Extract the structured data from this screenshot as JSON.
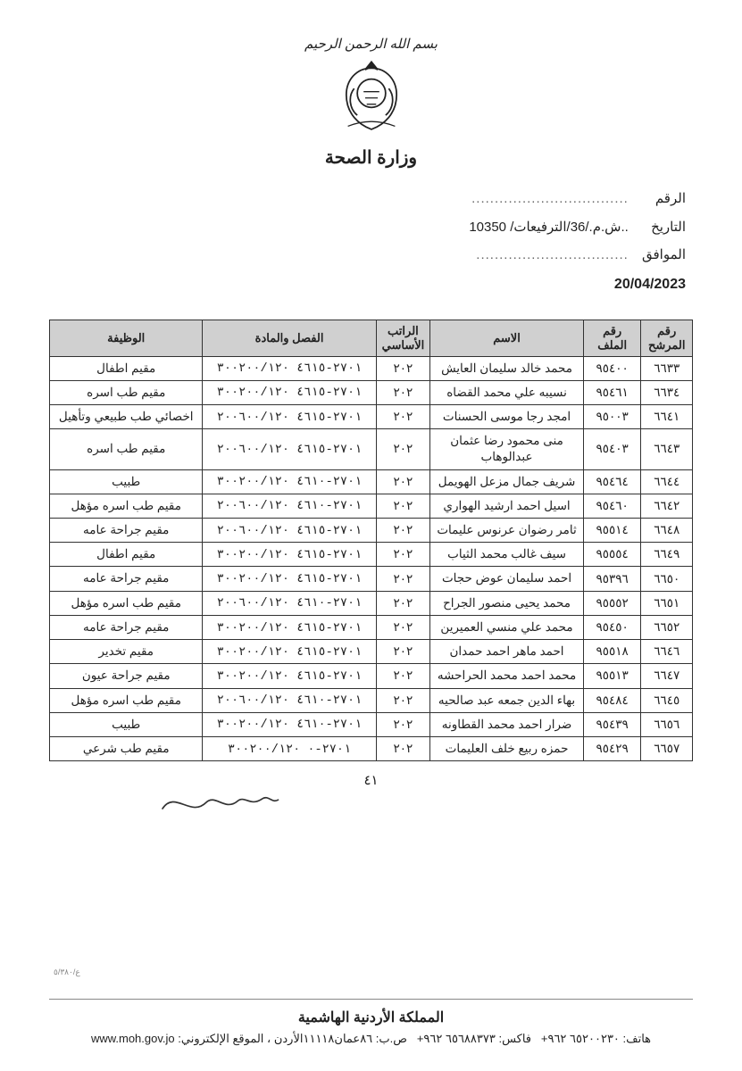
{
  "header": {
    "bismillah": "بسم الله الرحمن الرحيم",
    "ministry": "وزارة الصحة"
  },
  "meta": {
    "number_label": "الرقم",
    "number_value": "..................................",
    "date_label": "التاريخ",
    "date_value": "..ش.م./36/الترفيعات/ 10350",
    "approved_label": "الموافق",
    "approved_value": ".................................",
    "date_en": "20/04/2023"
  },
  "table": {
    "columns": [
      "رقم المرشح",
      "رقم الملف",
      "الاسم",
      "الراتب الأساسي",
      "الفصل والمادة",
      "الوظيفة"
    ],
    "rows": [
      [
        "٦٦٣٣",
        "٩٥٤٠٠",
        "محمد خالد سليمان العايش",
        "٢٠٢",
        "٢٧٠١-٤٦١٥ ٣٠٠٢٠٠/١٢٠",
        "مقيم اطفال"
      ],
      [
        "٦٦٣٤",
        "٩٥٤٦١",
        "نسيبه علي محمد القضاه",
        "٢٠٢",
        "٢٧٠١-٤٦١٥ ٣٠٠٢٠٠/١٢٠",
        "مقيم طب اسره"
      ],
      [
        "٦٦٤١",
        "٩٥٠٠٣",
        "امجد رجا موسى الحسنات",
        "٢٠٢",
        "٢٧٠١-٤٦١٥ ٢٠٠٦٠٠/١٢٠",
        "اخصائي طب طبيعي وتأهيل"
      ],
      [
        "٦٦٤٣",
        "٩٥٤٠٣",
        "منى محمود رضا عثمان عبدالوهاب",
        "٢٠٢",
        "٢٧٠١-٤٦١٥ ٢٠٠٦٠٠/١٢٠",
        "مقيم طب اسره"
      ],
      [
        "٦٦٤٤",
        "٩٥٤٦٤",
        "شريف جمال مزعل الهويمل",
        "٢٠٢",
        "٢٧٠١-٤٦١٠ ٣٠٠٢٠٠/١٢٠",
        "طبيب"
      ],
      [
        "٦٦٤٢",
        "٩٥٤٦٠",
        "اسيل احمد ارشيد الهواري",
        "٢٠٢",
        "٢٧٠١-٤٦١٠ ٢٠٠٦٠٠/١٢٠",
        "مقيم طب اسره مؤهل"
      ],
      [
        "٦٦٤٨",
        "٩٥٥١٤",
        "ثامر رضوان عرنوس عليمات",
        "٢٠٢",
        "٢٧٠١-٤٦١٥ ٢٠٠٦٠٠/١٢٠",
        "مقيم جراحة عامه"
      ],
      [
        "٦٦٤٩",
        "٩٥٥٥٤",
        "سيف غالب محمد الثياب",
        "٢٠٢",
        "٢٧٠١-٤٦١٥ ٣٠٠٢٠٠/١٢٠",
        "مقيم اطفال"
      ],
      [
        "٦٦٥٠",
        "٩٥٣٩٦",
        "احمد سليمان عوض حجات",
        "٢٠٢",
        "٢٧٠١-٤٦١٥ ٣٠٠٢٠٠/١٢٠",
        "مقيم جراحة عامه"
      ],
      [
        "٦٦٥١",
        "٩٥٥٥٢",
        "محمد يحيى منصور الجراح",
        "٢٠٢",
        "٢٧٠١-٤٦١٠ ٢٠٠٦٠٠/١٢٠",
        "مقيم طب اسره مؤهل"
      ],
      [
        "٦٦٥٢",
        "٩٥٤٥٠",
        "محمد علي منسي العميرين",
        "٢٠٢",
        "٢٧٠١-٤٦١٥ ٣٠٠٢٠٠/١٢٠",
        "مقيم جراحة عامه"
      ],
      [
        "٦٦٤٦",
        "٩٥٥١٨",
        "احمد ماهر احمد حمدان",
        "٢٠٢",
        "٢٧٠١-٤٦١٥ ٣٠٠٢٠٠/١٢٠",
        "مقيم تخدير"
      ],
      [
        "٦٦٤٧",
        "٩٥٥١٣",
        "محمد احمد محمد الحراحشه",
        "٢٠٢",
        "٢٧٠١-٤٦١٥ ٣٠٠٢٠٠/١٢٠",
        "مقيم جراحة عيون"
      ],
      [
        "٦٦٤٥",
        "٩٥٤٨٤",
        "بهاء الدين جمعه عبد صالحيه",
        "٢٠٢",
        "٢٧٠١-٤٦١٠ ٢٠٠٦٠٠/١٢٠",
        "مقيم طب اسره مؤهل"
      ],
      [
        "٦٦٥٦",
        "٩٥٤٣٩",
        "ضرار احمد محمد القطاونه",
        "٢٠٢",
        "٢٧٠١-٤٦١٠ ٣٠٠٢٠٠/١٢٠",
        "طبيب"
      ],
      [
        "٦٦٥٧",
        "٩٥٤٢٩",
        "حمزه ربيع خلف العليمات",
        "٢٠٢",
        "٢٧٠١-٠ ٣٠٠٢٠٠/١٢٠",
        "مقيم طب شرعي"
      ]
    ]
  },
  "page_number": "٤١",
  "footer": {
    "kingdom": "المملكة الأردنية الهاشمية",
    "contact_phone_label": "هاتف:",
    "contact_phone": "٦٥٢٠٠٢٣٠ ٩٦٢+",
    "contact_fax_label": "فاكس:",
    "contact_fax": "٦٥٦٨٨٣٧٣ ٩٦٢+",
    "contact_pobox_label": "ص.ب:",
    "contact_pobox": "٨٦عمان١١١١٨الأردن",
    "contact_web_label": "، الموقع الإلكتروني:",
    "contact_web": "www.moh.gov.jo"
  },
  "small_mark": "ع/٥/٣٨٠"
}
